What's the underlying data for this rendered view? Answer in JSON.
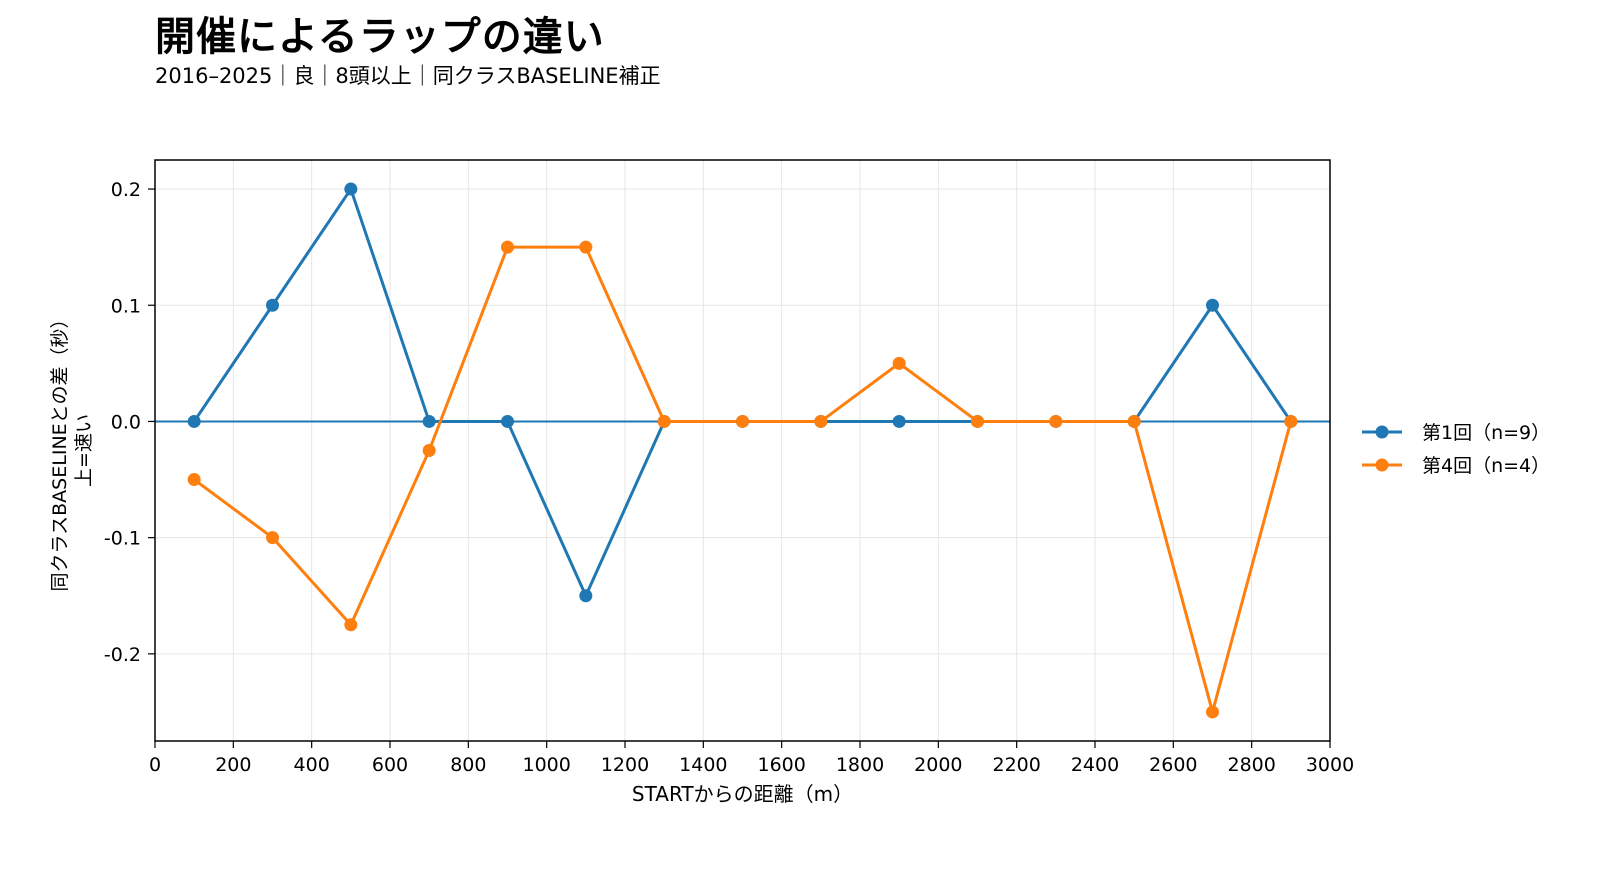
{
  "header": {
    "title": "開催によるラップの違い",
    "subtitle": "2016–2025｜良｜8頭以上｜同クラスBASELINE補正"
  },
  "chart_data": {
    "type": "line",
    "xlabel": "STARTからの距離（m）",
    "ylabel_line1": "同クラスBASELINEとの差（秒）",
    "ylabel_line2": "上=速い",
    "xlim": [
      0,
      3000
    ],
    "ylim": [
      -0.275,
      0.225
    ],
    "x_ticks": [
      0,
      200,
      400,
      600,
      800,
      1000,
      1200,
      1400,
      1600,
      1800,
      2000,
      2200,
      2400,
      2600,
      2800,
      3000
    ],
    "y_ticks": [
      0.2,
      0.1,
      0.0,
      -0.1,
      -0.2
    ],
    "y_tick_labels": [
      "0.2",
      "0.1",
      "0.0",
      "-0.1",
      "-0.2"
    ],
    "zero_line": true,
    "grid": true,
    "legend_position": "right",
    "x": [
      100,
      300,
      500,
      700,
      900,
      1100,
      1300,
      1500,
      1700,
      1900,
      2100,
      2300,
      2500,
      2700,
      2900
    ],
    "series": [
      {
        "name": "第1回（n=9）",
        "color": "#1f77b4",
        "values": [
          0.0,
          0.1,
          0.2,
          0.0,
          0.0,
          -0.15,
          0.0,
          0.0,
          0.0,
          0.0,
          0.0,
          0.0,
          0.0,
          0.1,
          0.0
        ]
      },
      {
        "name": "第4回（n=4）",
        "color": "#ff7f0e",
        "values": [
          -0.05,
          -0.1,
          -0.175,
          -0.025,
          0.15,
          0.15,
          0.0,
          0.0,
          0.0,
          0.05,
          0.0,
          0.0,
          0.0,
          -0.25,
          0.0
        ]
      }
    ]
  }
}
